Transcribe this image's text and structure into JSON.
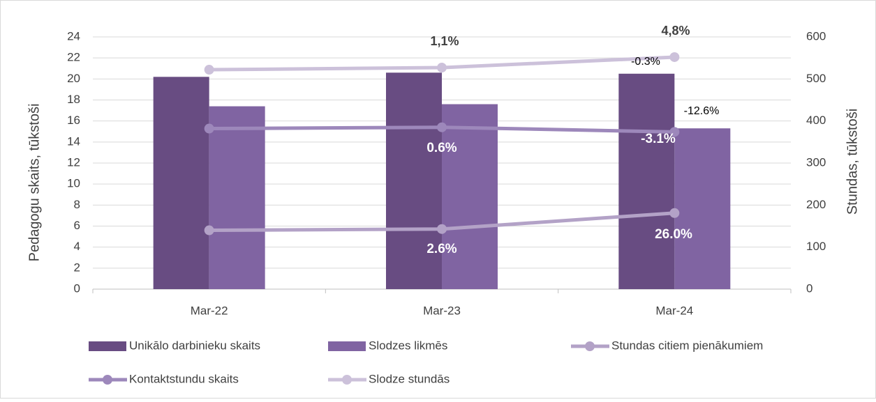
{
  "chart_data": {
    "type": "bar",
    "categories": [
      "Mar-22",
      "Mar-23",
      "Mar-24"
    ],
    "y_label": "Pedagogu skaits, tūkstoši",
    "y2_label": "Stundas, tūkstoši",
    "series": [
      {
        "name": "Unikālo darbinieku skaits",
        "type": "bar",
        "color": "#684c82",
        "values": [
          20.2,
          20.6,
          20.5
        ]
      },
      {
        "name": "Slodzes likmēs",
        "type": "bar",
        "color": "#8064a2",
        "values": [
          17.4,
          17.6,
          15.3
        ]
      },
      {
        "name": "Stundas citiem pienākumiem",
        "type": "line",
        "axis": "y2",
        "color": "#b3a2c7",
        "values": [
          140,
          143,
          181
        ]
      },
      {
        "name": "Kontaktstundu skaits",
        "type": "line",
        "axis": "y2",
        "color": "#9d88bb",
        "values": [
          382,
          385,
          374
        ]
      },
      {
        "name": "Slodze stundās",
        "type": "line",
        "axis": "y2",
        "color": "#ccc1da",
        "values": [
          522,
          527,
          552
        ]
      }
    ],
    "annotations": [
      "1,1%",
      "4,8%",
      "-0.3%",
      "-12.6%",
      "0.6%",
      "-3.1%",
      "2.6%",
      "26.0%"
    ],
    "ylim": [
      0,
      24
    ],
    "yticks": [
      0,
      2,
      4,
      6,
      8,
      10,
      12,
      14,
      16,
      18,
      20,
      22,
      24
    ],
    "y2lim": [
      0,
      600
    ],
    "y2ticks": [
      0,
      100,
      200,
      300,
      400,
      500,
      600
    ],
    "grid": true
  }
}
